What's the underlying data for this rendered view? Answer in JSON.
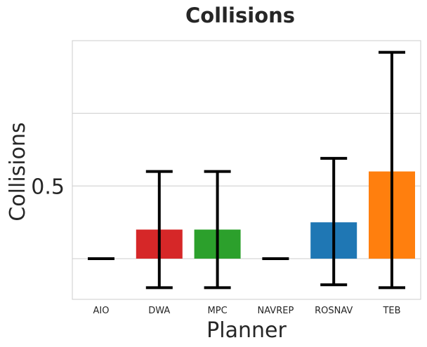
{
  "chart_data": {
    "type": "bar",
    "title": "Collisions",
    "xlabel": "Planner",
    "ylabel": "Collisions",
    "categories": [
      "AIO",
      "DWA",
      "MPC",
      "NAVREP",
      "ROSNAV",
      "TEB"
    ],
    "values": [
      0.0,
      0.2,
      0.2,
      0.0,
      0.25,
      0.6
    ],
    "error_low": [
      0.0,
      -0.2,
      -0.2,
      0.0,
      -0.18,
      -0.2
    ],
    "error_high": [
      0.0,
      0.6,
      0.6,
      0.0,
      0.69,
      1.42
    ],
    "colors": [
      "#1f77b4",
      "#d62728",
      "#2ca02c",
      "#1f77b4",
      "#1f77b4",
      "#ff7f0e"
    ],
    "bar_visible": [
      false,
      true,
      true,
      false,
      true,
      true
    ],
    "ylim": [
      -0.28,
      1.5
    ],
    "gridlines_y": [
      0.0,
      0.5,
      1.0
    ],
    "yticks": [
      0.5
    ],
    "ytick_labels": [
      "0.5"
    ],
    "grid": true
  }
}
